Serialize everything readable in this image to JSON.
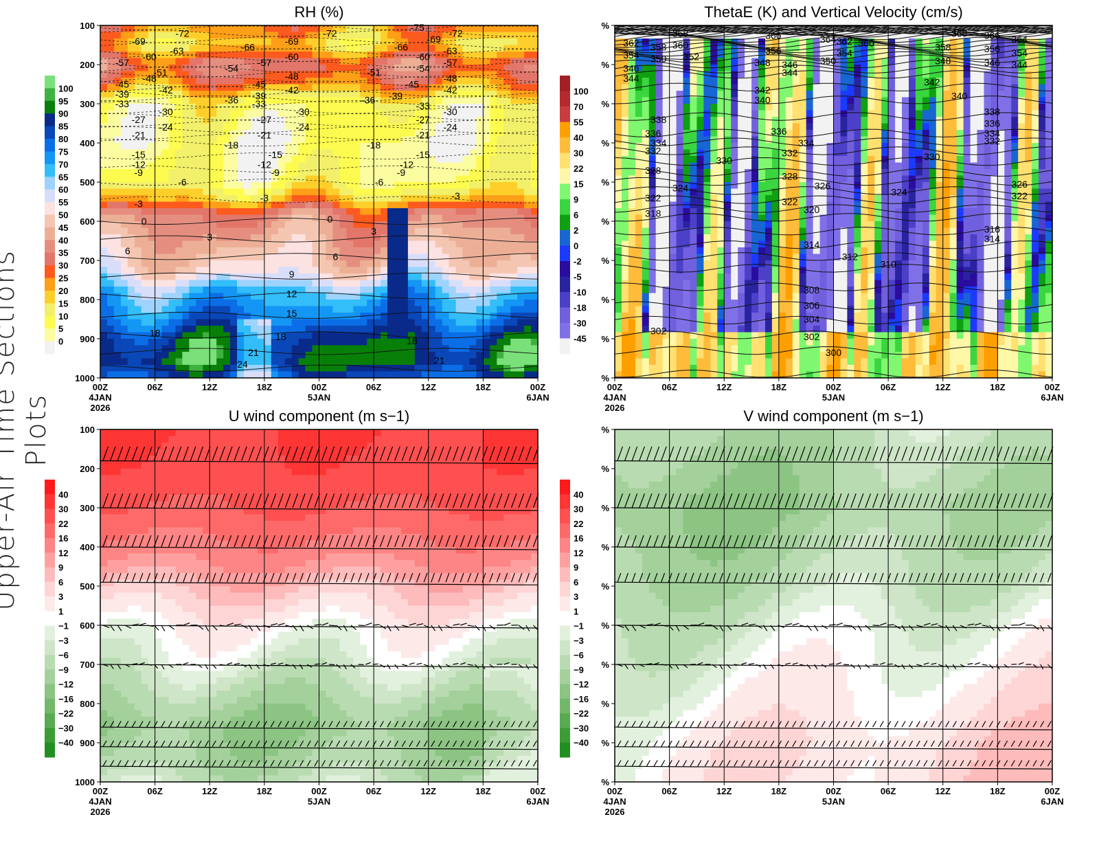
{
  "side_title": "Upper-Air Time Sections Plots",
  "x_ticks": [
    "00Z",
    "06Z",
    "12Z",
    "18Z",
    "00Z",
    "06Z",
    "12Z",
    "18Z",
    "00Z"
  ],
  "date_labels": [
    {
      "tick": 0,
      "lines": [
        "4JAN",
        "2026"
      ]
    },
    {
      "tick": 4,
      "lines": [
        "5JAN"
      ]
    },
    {
      "tick": 8,
      "lines": [
        "6JAN"
      ]
    }
  ],
  "y_ticks_left": [
    "100",
    "200",
    "300",
    "400",
    "500",
    "600",
    "700",
    "800",
    "900",
    "1000"
  ],
  "y_ticks_right": [
    "%",
    "%",
    "%",
    "%",
    "%",
    "%",
    "%",
    "%",
    "%",
    "%"
  ],
  "chart_data": [
    {
      "type": "heatmap",
      "title": "RH (%)",
      "y_axis": "pressure (hPa), inverted",
      "ylim": [
        1000,
        100
      ],
      "colorbar": {
        "labels": [
          "100",
          "95",
          "90",
          "85",
          "80",
          "75",
          "70",
          "65",
          "60",
          "55",
          "50",
          "45",
          "40",
          "35",
          "30",
          "25",
          "20",
          "15",
          "10",
          "5",
          "0"
        ],
        "colors": [
          "#7ae07a",
          "#3fb13f",
          "#087f08",
          "#0a2a8a",
          "#0a47b8",
          "#0b6ee6",
          "#1496f5",
          "#33bdf9",
          "#9dd3fc",
          "#d8defa",
          "#fde2e2",
          "#f4c6b2",
          "#ecaf96",
          "#e58e80",
          "#e3766a",
          "#fd5a1e",
          "#fe9f18",
          "#fecf2a",
          "#f2ef6a",
          "#fdfb4f",
          "#fcfca0",
          "#f2f2f2"
        ]
      },
      "contour_labels": [
        {
          "v": "-72",
          "t": 1.5,
          "p": 120
        },
        {
          "v": "-69",
          "t": 0.7,
          "p": 140
        },
        {
          "v": "-63",
          "t": 1.4,
          "p": 165
        },
        {
          "v": "-60",
          "t": 0.9,
          "p": 180
        },
        {
          "v": "-57",
          "t": 0.4,
          "p": 195
        },
        {
          "v": "-54",
          "t": 2.4,
          "p": 210
        },
        {
          "v": "-51",
          "t": 1.1,
          "p": 220
        },
        {
          "v": "-48",
          "t": 0.9,
          "p": 235
        },
        {
          "v": "-45",
          "t": 0.4,
          "p": 250
        },
        {
          "v": "-42",
          "t": 1.2,
          "p": 265
        },
        {
          "v": "-39",
          "t": 0.4,
          "p": 275
        },
        {
          "v": "-36",
          "t": 2.4,
          "p": 290
        },
        {
          "v": "-33",
          "t": 0.4,
          "p": 300
        },
        {
          "v": "-30",
          "t": 1.2,
          "p": 320
        },
        {
          "v": "-27",
          "t": 0.7,
          "p": 340
        },
        {
          "v": "-24",
          "t": 1.2,
          "p": 360
        },
        {
          "v": "-21",
          "t": 0.7,
          "p": 380
        },
        {
          "v": "-18",
          "t": 2.4,
          "p": 405
        },
        {
          "v": "-15",
          "t": 0.7,
          "p": 430
        },
        {
          "v": "-12",
          "t": 0.7,
          "p": 455
        },
        {
          "v": "-9",
          "t": 0.7,
          "p": 475
        },
        {
          "v": "-6",
          "t": 1.5,
          "p": 500
        },
        {
          "v": "-3",
          "t": 0.7,
          "p": 555
        },
        {
          "v": "0",
          "t": 0.8,
          "p": 600
        },
        {
          "v": "3",
          "t": 2.0,
          "p": 640
        },
        {
          "v": "6",
          "t": 0.5,
          "p": 675
        },
        {
          "v": "9",
          "t": 3.5,
          "p": 735
        },
        {
          "v": "12",
          "t": 3.5,
          "p": 785
        },
        {
          "v": "15",
          "t": 3.5,
          "p": 835
        },
        {
          "v": "18",
          "t": 1.0,
          "p": 885
        },
        {
          "v": "21",
          "t": 2.8,
          "p": 935
        },
        {
          "v": "24",
          "t": 2.6,
          "p": 965
        },
        {
          "v": "-69",
          "t": 3.5,
          "p": 140
        },
        {
          "v": "-72",
          "t": 4.2,
          "p": 120
        },
        {
          "v": "-66",
          "t": 2.7,
          "p": 155
        },
        {
          "v": "-60",
          "t": 3.5,
          "p": 180
        },
        {
          "v": "-57",
          "t": 3.0,
          "p": 195
        },
        {
          "v": "-48",
          "t": 3.5,
          "p": 230
        },
        {
          "v": "-45",
          "t": 2.9,
          "p": 250
        },
        {
          "v": "-42",
          "t": 3.5,
          "p": 265
        },
        {
          "v": "-39",
          "t": 2.9,
          "p": 280
        },
        {
          "v": "-33",
          "t": 2.9,
          "p": 300
        },
        {
          "v": "-30",
          "t": 3.7,
          "p": 320
        },
        {
          "v": "-27",
          "t": 3.0,
          "p": 340
        },
        {
          "v": "-24",
          "t": 3.7,
          "p": 360
        },
        {
          "v": "-21",
          "t": 3.0,
          "p": 380
        },
        {
          "v": "-15",
          "t": 3.2,
          "p": 430
        },
        {
          "v": "-12",
          "t": 3.0,
          "p": 455
        },
        {
          "v": "-9",
          "t": 3.2,
          "p": 475
        },
        {
          "v": "-3",
          "t": 3.0,
          "p": 540
        },
        {
          "v": "0",
          "t": 4.2,
          "p": 595
        },
        {
          "v": "6",
          "t": 4.3,
          "p": 690
        },
        {
          "v": "18",
          "t": 3.3,
          "p": 895
        },
        {
          "v": "-75",
          "t": 5.8,
          "p": 105
        },
        {
          "v": "-69",
          "t": 6.1,
          "p": 135
        },
        {
          "v": "-72",
          "t": 6.5,
          "p": 120
        },
        {
          "v": "-66",
          "t": 5.5,
          "p": 155
        },
        {
          "v": "-63",
          "t": 6.4,
          "p": 165
        },
        {
          "v": "-60",
          "t": 5.9,
          "p": 180
        },
        {
          "v": "-57",
          "t": 6.4,
          "p": 195
        },
        {
          "v": "-54",
          "t": 5.9,
          "p": 210
        },
        {
          "v": "-51",
          "t": 5.0,
          "p": 220
        },
        {
          "v": "-48",
          "t": 6.4,
          "p": 235
        },
        {
          "v": "-45",
          "t": 5.7,
          "p": 250
        },
        {
          "v": "-42",
          "t": 6.4,
          "p": 265
        },
        {
          "v": "-39",
          "t": 5.4,
          "p": 280
        },
        {
          "v": "-36",
          "t": 4.9,
          "p": 290
        },
        {
          "v": "-33",
          "t": 5.9,
          "p": 305
        },
        {
          "v": "-30",
          "t": 6.4,
          "p": 320
        },
        {
          "v": "-27",
          "t": 5.9,
          "p": 340
        },
        {
          "v": "-24",
          "t": 6.4,
          "p": 360
        },
        {
          "v": "-21",
          "t": 5.9,
          "p": 380
        },
        {
          "v": "-18",
          "t": 5.0,
          "p": 405
        },
        {
          "v": "-15",
          "t": 5.9,
          "p": 430
        },
        {
          "v": "-12",
          "t": 5.6,
          "p": 455
        },
        {
          "v": "-9",
          "t": 5.5,
          "p": 475
        },
        {
          "v": "-6",
          "t": 5.1,
          "p": 500
        },
        {
          "v": "-3",
          "t": 6.5,
          "p": 535
        },
        {
          "v": "3",
          "t": 5.0,
          "p": 625
        },
        {
          "v": "18",
          "t": 5.7,
          "p": 905
        },
        {
          "v": "21",
          "t": 6.2,
          "p": 955
        }
      ]
    },
    {
      "type": "heatmap",
      "title": "ThetaE (K) and Vertical Velocity (cm/s)",
      "y_axis": "pressure, inverted",
      "ylim": [
        1000,
        100
      ],
      "colorbar": {
        "labels": [
          "100",
          "70",
          "55",
          "40",
          "30",
          "22",
          "15",
          "9",
          "6",
          "2",
          "0",
          "-2",
          "-5",
          "-10",
          "-18",
          "-30",
          "-45"
        ],
        "colors": [
          "#a41f23",
          "#b52a2c",
          "#c83d3e",
          "#fe9f00",
          "#ffbb3a",
          "#ffe070",
          "#fff7a8",
          "#7ff76f",
          "#3bd63f",
          "#0fa012",
          "#1766d4",
          "#1b3afe",
          "#2a0c9f",
          "#2a23a0",
          "#4c3fc8",
          "#7060dd",
          "#8070e8",
          "#f2f2f2"
        ]
      },
      "contour_labels": [
        {
          "v": "368",
          "t": 1.2,
          "p": 120
        },
        {
          "v": "362",
          "t": 0.3,
          "p": 145
        },
        {
          "v": "360",
          "t": 1.2,
          "p": 150
        },
        {
          "v": "358",
          "t": 0.8,
          "p": 155
        },
        {
          "v": "354",
          "t": 0.3,
          "p": 175
        },
        {
          "v": "350",
          "t": 0.8,
          "p": 185
        },
        {
          "v": "352",
          "t": 1.4,
          "p": 180
        },
        {
          "v": "346",
          "t": 0.3,
          "p": 210
        },
        {
          "v": "344",
          "t": 0.3,
          "p": 235
        },
        {
          "v": "338",
          "t": 0.8,
          "p": 340
        },
        {
          "v": "336",
          "t": 0.7,
          "p": 375
        },
        {
          "v": "334",
          "t": 0.8,
          "p": 400
        },
        {
          "v": "332",
          "t": 0.7,
          "p": 420
        },
        {
          "v": "328",
          "t": 0.7,
          "p": 470
        },
        {
          "v": "324",
          "t": 1.2,
          "p": 515
        },
        {
          "v": "322",
          "t": 0.7,
          "p": 540
        },
        {
          "v": "318",
          "t": 0.7,
          "p": 580
        },
        {
          "v": "302",
          "t": 0.8,
          "p": 880
        },
        {
          "v": "366",
          "t": 2.9,
          "p": 125
        },
        {
          "v": "356",
          "t": 2.9,
          "p": 165
        },
        {
          "v": "348",
          "t": 2.7,
          "p": 195
        },
        {
          "v": "346",
          "t": 3.2,
          "p": 200
        },
        {
          "v": "344",
          "t": 3.2,
          "p": 220
        },
        {
          "v": "342",
          "t": 2.7,
          "p": 265
        },
        {
          "v": "340",
          "t": 2.7,
          "p": 290
        },
        {
          "v": "330",
          "t": 2.0,
          "p": 445
        },
        {
          "v": "336",
          "t": 3.0,
          "p": 370
        },
        {
          "v": "334",
          "t": 3.5,
          "p": 400
        },
        {
          "v": "332",
          "t": 3.2,
          "p": 425
        },
        {
          "v": "328",
          "t": 3.2,
          "p": 485
        },
        {
          "v": "326",
          "t": 3.8,
          "p": 510
        },
        {
          "v": "322",
          "t": 3.2,
          "p": 550
        },
        {
          "v": "320",
          "t": 3.6,
          "p": 570
        },
        {
          "v": "314",
          "t": 3.6,
          "p": 660
        },
        {
          "v": "308",
          "t": 3.6,
          "p": 775
        },
        {
          "v": "306",
          "t": 3.6,
          "p": 815
        },
        {
          "v": "304",
          "t": 3.6,
          "p": 850
        },
        {
          "v": "302",
          "t": 3.6,
          "p": 895
        },
        {
          "v": "300",
          "t": 4.0,
          "p": 935
        },
        {
          "v": "364",
          "t": 3.9,
          "p": 135
        },
        {
          "v": "362",
          "t": 4.2,
          "p": 140
        },
        {
          "v": "360",
          "t": 4.6,
          "p": 145
        },
        {
          "v": "354",
          "t": 4.2,
          "p": 170
        },
        {
          "v": "350",
          "t": 3.9,
          "p": 190
        },
        {
          "v": "368",
          "t": 6.3,
          "p": 120
        },
        {
          "v": "366",
          "t": 6.9,
          "p": 125
        },
        {
          "v": "364",
          "t": 7.4,
          "p": 135
        },
        {
          "v": "358",
          "t": 6.0,
          "p": 155
        },
        {
          "v": "356",
          "t": 6.9,
          "p": 160
        },
        {
          "v": "354",
          "t": 7.4,
          "p": 170
        },
        {
          "v": "348",
          "t": 6.0,
          "p": 190
        },
        {
          "v": "346",
          "t": 6.9,
          "p": 195
        },
        {
          "v": "344",
          "t": 7.4,
          "p": 200
        },
        {
          "v": "342",
          "t": 5.8,
          "p": 245
        },
        {
          "v": "340",
          "t": 6.3,
          "p": 280
        },
        {
          "v": "338",
          "t": 6.9,
          "p": 320
        },
        {
          "v": "336",
          "t": 6.9,
          "p": 350
        },
        {
          "v": "334",
          "t": 6.9,
          "p": 375
        },
        {
          "v": "332",
          "t": 6.9,
          "p": 395
        },
        {
          "v": "330",
          "t": 5.8,
          "p": 435
        },
        {
          "v": "326",
          "t": 7.4,
          "p": 505
        },
        {
          "v": "324",
          "t": 5.2,
          "p": 525
        },
        {
          "v": "322",
          "t": 7.4,
          "p": 535
        },
        {
          "v": "316",
          "t": 6.9,
          "p": 620
        },
        {
          "v": "314",
          "t": 6.9,
          "p": 645
        },
        {
          "v": "312",
          "t": 4.3,
          "p": 690
        },
        {
          "v": "310",
          "t": 5.0,
          "p": 710
        }
      ]
    },
    {
      "type": "heatmap",
      "title": "U wind component (m s−1)",
      "y_axis": "pressure (hPa), inverted",
      "ylim": [
        1000,
        100
      ],
      "colorbar": {
        "labels": [
          "40",
          "30",
          "22",
          "16",
          "12",
          "9",
          "6",
          "3",
          "1",
          "−1",
          "−3",
          "−6",
          "−9",
          "−12",
          "−16",
          "−22",
          "−30",
          "−40"
        ],
        "colors": [
          "#fe1a1a",
          "#fe3535",
          "#fe5050",
          "#fe6a6a",
          "#fe8585",
          "#fea0a0",
          "#febbbb",
          "#fed5d5",
          "#fee9e9",
          "#ffffff",
          "#e2f0de",
          "#cee5c8",
          "#b9dbb2",
          "#a3d09b",
          "#8cc483",
          "#73b86a",
          "#58ab50",
          "#3c9d35",
          "#229020"
        ]
      }
    },
    {
      "type": "heatmap",
      "title": "V wind component (m s−1)",
      "y_axis": "pressure, inverted",
      "ylim": [
        1000,
        100
      ],
      "colorbar": {
        "labels": [
          "40",
          "30",
          "22",
          "16",
          "12",
          "9",
          "6",
          "3",
          "1",
          "−1",
          "−3",
          "−6",
          "−9",
          "−12",
          "−16",
          "−22",
          "−30",
          "−40"
        ],
        "colors": [
          "#fe1a1a",
          "#fe3535",
          "#fe5050",
          "#fe6a6a",
          "#fe8585",
          "#fea0a0",
          "#febbbb",
          "#fed5d5",
          "#fee9e9",
          "#ffffff",
          "#e2f0de",
          "#cee5c8",
          "#b9dbb2",
          "#a3d09b",
          "#8cc483",
          "#73b86a",
          "#58ab50",
          "#3c9d35",
          "#229020"
        ]
      }
    }
  ]
}
